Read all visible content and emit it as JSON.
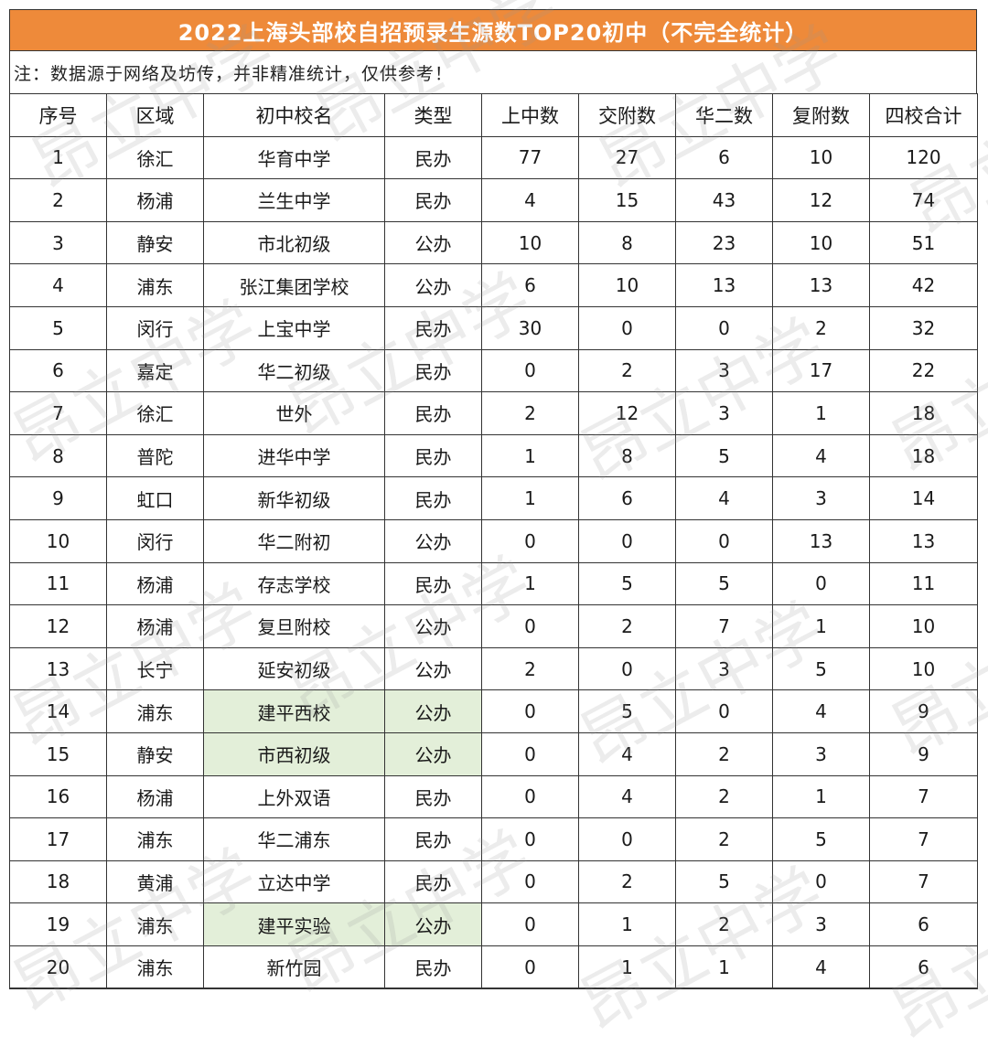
{
  "title": "2022上海头部校自招预录生源数TOP20初中（不完全统计）",
  "note": "注：数据源于网络及坊传，并非精准统计，仅供参考！",
  "watermark": "昂立中学",
  "colors": {
    "title_bg": "#ee8a3a",
    "highlight": "#e3efd9"
  },
  "headers": [
    "序号",
    "区域",
    "初中校名",
    "类型",
    "上中数",
    "交附数",
    "华二数",
    "复附数",
    "四校合计"
  ],
  "rows": [
    {
      "no": "1",
      "district": "徐汇",
      "school": "华育中学",
      "type": "民办",
      "sz": "77",
      "jf": "27",
      "he": "6",
      "ff": "10",
      "total": "120",
      "hl": false
    },
    {
      "no": "2",
      "district": "杨浦",
      "school": "兰生中学",
      "type": "民办",
      "sz": "4",
      "jf": "15",
      "he": "43",
      "ff": "12",
      "total": "74",
      "hl": false
    },
    {
      "no": "3",
      "district": "静安",
      "school": "市北初级",
      "type": "公办",
      "sz": "10",
      "jf": "8",
      "he": "23",
      "ff": "10",
      "total": "51",
      "hl": false
    },
    {
      "no": "4",
      "district": "浦东",
      "school": "张江集团学校",
      "type": "公办",
      "sz": "6",
      "jf": "10",
      "he": "13",
      "ff": "13",
      "total": "42",
      "hl": false
    },
    {
      "no": "5",
      "district": "闵行",
      "school": "上宝中学",
      "type": "民办",
      "sz": "30",
      "jf": "0",
      "he": "0",
      "ff": "2",
      "total": "32",
      "hl": false
    },
    {
      "no": "6",
      "district": "嘉定",
      "school": "华二初级",
      "type": "民办",
      "sz": "0",
      "jf": "2",
      "he": "3",
      "ff": "17",
      "total": "22",
      "hl": false
    },
    {
      "no": "7",
      "district": "徐汇",
      "school": "世外",
      "type": "民办",
      "sz": "2",
      "jf": "12",
      "he": "3",
      "ff": "1",
      "total": "18",
      "hl": false
    },
    {
      "no": "8",
      "district": "普陀",
      "school": "进华中学",
      "type": "民办",
      "sz": "1",
      "jf": "8",
      "he": "5",
      "ff": "4",
      "total": "18",
      "hl": false
    },
    {
      "no": "9",
      "district": "虹口",
      "school": "新华初级",
      "type": "民办",
      "sz": "1",
      "jf": "6",
      "he": "4",
      "ff": "3",
      "total": "14",
      "hl": false
    },
    {
      "no": "10",
      "district": "闵行",
      "school": "华二附初",
      "type": "公办",
      "sz": "0",
      "jf": "0",
      "he": "0",
      "ff": "13",
      "total": "13",
      "hl": false
    },
    {
      "no": "11",
      "district": "杨浦",
      "school": "存志学校",
      "type": "民办",
      "sz": "1",
      "jf": "5",
      "he": "5",
      "ff": "0",
      "total": "11",
      "hl": false
    },
    {
      "no": "12",
      "district": "杨浦",
      "school": "复旦附校",
      "type": "公办",
      "sz": "0",
      "jf": "2",
      "he": "7",
      "ff": "1",
      "total": "10",
      "hl": false
    },
    {
      "no": "13",
      "district": "长宁",
      "school": "延安初级",
      "type": "公办",
      "sz": "2",
      "jf": "0",
      "he": "3",
      "ff": "5",
      "total": "10",
      "hl": false
    },
    {
      "no": "14",
      "district": "浦东",
      "school": "建平西校",
      "type": "公办",
      "sz": "0",
      "jf": "5",
      "he": "0",
      "ff": "4",
      "total": "9",
      "hl": true
    },
    {
      "no": "15",
      "district": "静安",
      "school": "市西初级",
      "type": "公办",
      "sz": "0",
      "jf": "4",
      "he": "2",
      "ff": "3",
      "total": "9",
      "hl": true
    },
    {
      "no": "16",
      "district": "杨浦",
      "school": "上外双语",
      "type": "民办",
      "sz": "0",
      "jf": "4",
      "he": "2",
      "ff": "1",
      "total": "7",
      "hl": false
    },
    {
      "no": "17",
      "district": "浦东",
      "school": "华二浦东",
      "type": "民办",
      "sz": "0",
      "jf": "0",
      "he": "2",
      "ff": "5",
      "total": "7",
      "hl": false
    },
    {
      "no": "18",
      "district": "黄浦",
      "school": "立达中学",
      "type": "民办",
      "sz": "0",
      "jf": "2",
      "he": "5",
      "ff": "0",
      "total": "7",
      "hl": false
    },
    {
      "no": "19",
      "district": "浦东",
      "school": "建平实验",
      "type": "公办",
      "sz": "0",
      "jf": "1",
      "he": "2",
      "ff": "3",
      "total": "6",
      "hl": true
    },
    {
      "no": "20",
      "district": "浦东",
      "school": "新竹园",
      "type": "民办",
      "sz": "0",
      "jf": "1",
      "he": "1",
      "ff": "4",
      "total": "6",
      "hl": false
    }
  ]
}
